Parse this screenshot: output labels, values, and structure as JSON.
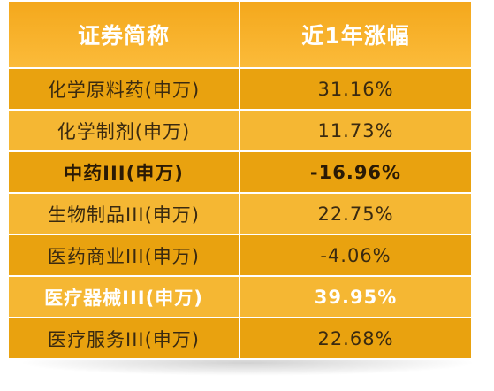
{
  "header": {
    "columns": [
      "证券简称",
      "近1年涨幅"
    ]
  },
  "table": {
    "rows": [
      [
        "化学原料药(申万)",
        "31.16%"
      ],
      [
        "化学制剂(申万)",
        "11.73%"
      ],
      [
        "中药III(申万)",
        "-16.96%"
      ],
      [
        "生物制品III(申万)",
        "22.75%"
      ],
      [
        "医药商业III(申万)",
        "-4.06%"
      ],
      [
        "医疗器械III(申万)",
        "39.95%"
      ],
      [
        "医疗服务III(申万)",
        "22.68%"
      ]
    ]
  }
}
